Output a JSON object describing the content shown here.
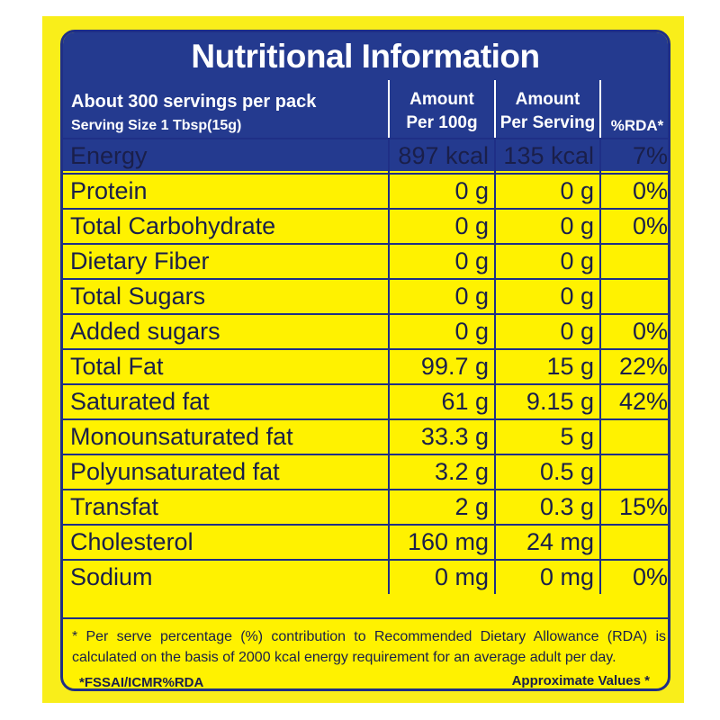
{
  "title": "Nutritional Information",
  "header": {
    "servings": "About 300 servings per pack",
    "serving_size": "Serving Size 1 Tbsp(15g)",
    "col_per100_line1": "Amount",
    "col_per100_line2": "Per 100g",
    "col_perserving_line1": "Amount",
    "col_perserving_line2": "Per Serving",
    "col_rda": "%RDA*"
  },
  "rows": [
    {
      "name": "Energy",
      "per100": "897 kcal",
      "perserving": "135 kcal",
      "rda": "7%"
    },
    {
      "name": "Protein",
      "per100": "0 g",
      "perserving": "0 g",
      "rda": "0%"
    },
    {
      "name": "Total Carbohydrate",
      "per100": "0 g",
      "perserving": "0 g",
      "rda": "0%"
    },
    {
      "name": "Dietary Fiber",
      "per100": "0 g",
      "perserving": "0 g",
      "rda": ""
    },
    {
      "name": "Total Sugars",
      "per100": "0 g",
      "perserving": "0 g",
      "rda": ""
    },
    {
      "name": "Added sugars",
      "per100": "0 g",
      "perserving": "0 g",
      "rda": "0%"
    },
    {
      "name": "Total Fat",
      "per100": "99.7 g",
      "perserving": "15 g",
      "rda": "22%"
    },
    {
      "name": "Saturated fat",
      "per100": "61 g",
      "perserving": "9.15 g",
      "rda": "42%"
    },
    {
      "name": "Monounsaturated fat",
      "per100": "33.3 g",
      "perserving": "5 g",
      "rda": ""
    },
    {
      "name": "Polyunsaturated fat",
      "per100": "3.2 g",
      "perserving": "0.5 g",
      "rda": ""
    },
    {
      "name": "Transfat",
      "per100": "2 g",
      "perserving": "0.3 g",
      "rda": "15%"
    },
    {
      "name": "Cholesterol",
      "per100": "160 mg",
      "perserving": "24 mg",
      "rda": ""
    },
    {
      "name": "Sodium",
      "per100": "0 mg",
      "perserving": "0 mg",
      "rda": "0%"
    }
  ],
  "footer": {
    "note": "* Per serve percentage (%) contribution to Recommended Dietary Allowance (RDA) is calculated on the basis of 2000 kcal energy requirement for an average adult per day.",
    "source": "*FSSAI/ICMR%RDA",
    "approx": "Approximate Values *"
  },
  "colors": {
    "background_yellow": "#fff200",
    "header_blue": "#243a8f",
    "text_dark": "#1a1f4a"
  }
}
